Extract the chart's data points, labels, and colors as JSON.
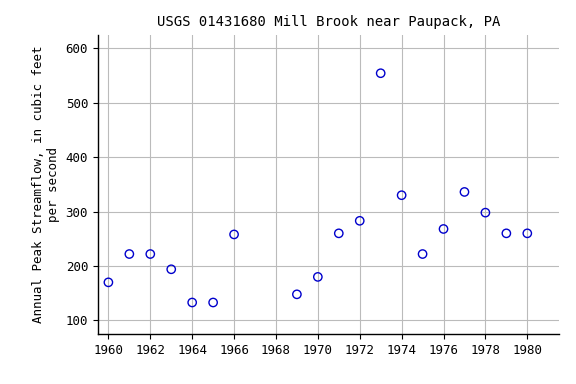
{
  "title": "USGS 01431680 Mill Brook near Paupack, PA",
  "ylabel_line1": "Annual Peak Streamflow, in cubic feet",
  "ylabel_line2": "per second",
  "years": [
    1960,
    1961,
    1962,
    1963,
    1964,
    1965,
    1966,
    1969,
    1970,
    1971,
    1972,
    1973,
    1974,
    1975,
    1976,
    1977,
    1978,
    1979,
    1980
  ],
  "flows": [
    170,
    222,
    222,
    194,
    133,
    133,
    258,
    148,
    180,
    260,
    283,
    554,
    330,
    222,
    268,
    336,
    298,
    260,
    260
  ],
  "xlim": [
    1959.5,
    1981.5
  ],
  "ylim": [
    75,
    625
  ],
  "yticks": [
    100,
    200,
    300,
    400,
    500,
    600
  ],
  "xticks": [
    1960,
    1962,
    1964,
    1966,
    1968,
    1970,
    1972,
    1974,
    1976,
    1978,
    1980
  ],
  "marker_color": "#0000cc",
  "marker_size": 6,
  "grid_color": "#bbbbbb",
  "bg_color": "#ffffff",
  "title_fontsize": 10,
  "label_fontsize": 9,
  "tick_fontsize": 9
}
